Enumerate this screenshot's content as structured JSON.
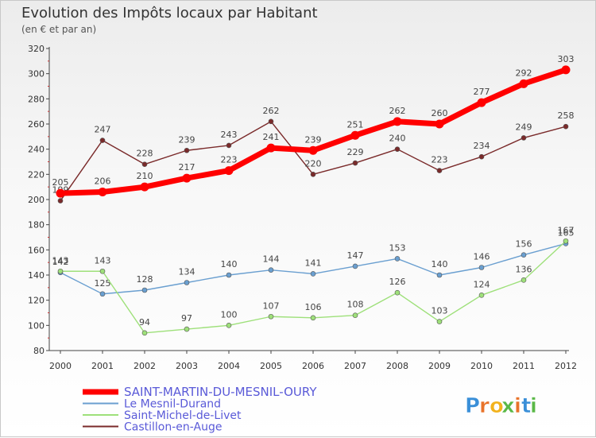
{
  "chart_data": {
    "type": "line",
    "title": "Evolution des Impôts locaux par Habitant",
    "subtitle": "(en € et par an)",
    "x": [
      "2000",
      "2001",
      "2002",
      "2003",
      "2004",
      "2005",
      "2006",
      "2007",
      "2008",
      "2009",
      "2010",
      "2011",
      "2012"
    ],
    "ylim": [
      80,
      320
    ],
    "yticks": [
      80,
      100,
      120,
      140,
      160,
      180,
      200,
      220,
      240,
      260,
      280,
      300,
      320
    ],
    "grid": false,
    "legend_position": "bottom-left",
    "series": [
      {
        "name": "SAINT-MARTIN-DU-MESNIL-OURY",
        "color": "#ff0000",
        "values": [
          205,
          206,
          210,
          217,
          223,
          241,
          239,
          251,
          262,
          260,
          277,
          292,
          303
        ]
      },
      {
        "name": "Le Mesnil-Durand",
        "color": "#6a9fd0",
        "values": [
          142,
          125,
          128,
          134,
          140,
          144,
          141,
          147,
          153,
          140,
          146,
          156,
          165
        ]
      },
      {
        "name": "Saint-Michel-de-Livet",
        "color": "#9ee07a",
        "values": [
          143,
          143,
          94,
          97,
          100,
          107,
          106,
          108,
          126,
          103,
          124,
          136,
          167
        ]
      },
      {
        "name": "Castillon-en-Auge",
        "color": "#7a2a2a",
        "values": [
          199,
          247,
          228,
          239,
          243,
          262,
          220,
          229,
          240,
          223,
          234,
          249,
          258
        ]
      }
    ]
  },
  "brand": {
    "text": "Proxiti"
  },
  "colors": {
    "axis": "#444444",
    "tick_label": "#333333",
    "legend_text": "#5a5ad8",
    "title": "#333333"
  }
}
